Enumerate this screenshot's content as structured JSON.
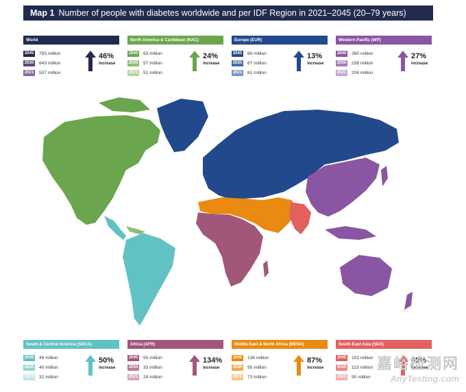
{
  "title": {
    "prefix": "Map 1",
    "text": "Number of people with diabetes worldwide and per IDF Region in 2021–2045 (20–79 years)"
  },
  "panels": [
    {
      "id": "world",
      "name": "World",
      "color": "#222a4e",
      "c1": "#222a4e",
      "c2": "#5c4a7a",
      "c3": "#8a6a9a",
      "rows": [
        {
          "year": "2045",
          "value": "783 million"
        },
        {
          "year": "2030",
          "value": "643 million"
        },
        {
          "year": "2021",
          "value": "537 million"
        }
      ],
      "pct": "46%",
      "inc": "increase"
    },
    {
      "id": "nac",
      "name": "North America & Caribbean (NAC)",
      "color": "#6ba64e",
      "c1": "#6ba64e",
      "c2": "#8dbf72",
      "c3": "#b3d59d",
      "rows": [
        {
          "year": "2045",
          "value": "63 million"
        },
        {
          "year": "2030",
          "value": "57 million"
        },
        {
          "year": "2021",
          "value": "51 million"
        }
      ],
      "pct": "24%",
      "inc": "increase"
    },
    {
      "id": "eur",
      "name": "Europe (EUR)",
      "color": "#23498d",
      "c1": "#23498d",
      "c2": "#4a6ba7",
      "c3": "#7f95c2",
      "rows": [
        {
          "year": "2045",
          "value": "69 million"
        },
        {
          "year": "2030",
          "value": "67 million"
        },
        {
          "year": "2021",
          "value": "61 million"
        }
      ],
      "pct": "13%",
      "inc": "increase"
    },
    {
      "id": "wp",
      "name": "Western Pacific (WP)",
      "color": "#8a55a3",
      "c1": "#8a55a3",
      "c2": "#a57bbb",
      "c3": "#c4a6d3",
      "rows": [
        {
          "year": "2045",
          "value": "260 million"
        },
        {
          "year": "2030",
          "value": "238 million"
        },
        {
          "year": "2021",
          "value": "206 million"
        }
      ],
      "pct": "27%",
      "inc": "increase"
    },
    {
      "id": "saca",
      "name": "South & Central America (SACA)",
      "color": "#61c2c4",
      "c1": "#61c2c4",
      "c2": "#8ed4d5",
      "c3": "#bfe6e6",
      "rows": [
        {
          "year": "2045",
          "value": "49 million"
        },
        {
          "year": "2030",
          "value": "40 million"
        },
        {
          "year": "2021",
          "value": "32 million"
        }
      ],
      "pct": "50%",
      "inc": "increase"
    },
    {
      "id": "afr",
      "name": "Africa (AFR)",
      "color": "#a2577a",
      "c1": "#a2577a",
      "c2": "#b97b98",
      "c3": "#d3a9bc",
      "rows": [
        {
          "year": "2045",
          "value": "55 million"
        },
        {
          "year": "2030",
          "value": "33 million"
        },
        {
          "year": "2021",
          "value": "24 million"
        }
      ],
      "pct": "134%",
      "inc": "increase"
    },
    {
      "id": "mena",
      "name": "Middle East & North Africa (MENA)",
      "color": "#ea8a10",
      "c1": "#ea8a10",
      "c2": "#f0a84d",
      "c3": "#f5c88c",
      "rows": [
        {
          "year": "2045",
          "value": "136 million"
        },
        {
          "year": "2030",
          "value": "95 million"
        },
        {
          "year": "2021",
          "value": "73 million"
        }
      ],
      "pct": "87%",
      "inc": "increase"
    },
    {
      "id": "sea",
      "name": "South-East Asia (SEA)",
      "color": "#e2605e",
      "c1": "#e2605e",
      "c2": "#ea8786",
      "c3": "#f2b4b3",
      "rows": [
        {
          "year": "2045",
          "value": "152 million"
        },
        {
          "year": "2030",
          "value": "113 million"
        },
        {
          "year": "2021",
          "value": "90 million"
        }
      ],
      "pct": "68%",
      "inc": "increase"
    }
  ],
  "watermark": {
    "cn": "嘉峪检测网",
    "en": "AnyTesting.com"
  }
}
